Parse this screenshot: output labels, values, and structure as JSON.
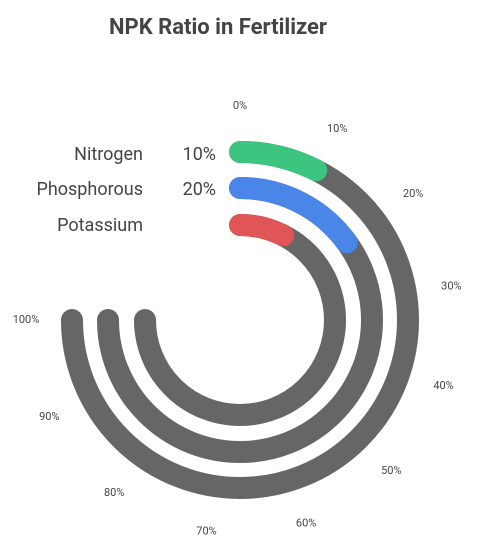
{
  "chart_data": {
    "type": "radialBar",
    "title": "NPK Ratio in Fertilizer",
    "categories": [
      "Nitrogen",
      "Phosphorous",
      "Potassium"
    ],
    "values": [
      10,
      20,
      10
    ],
    "value_labels": [
      "10%",
      "20%",
      null
    ],
    "colors": [
      "#3dc47e",
      "#4a86e8",
      "#e05555"
    ],
    "track_color": "#666666",
    "ylim": [
      0,
      100
    ],
    "yticks": [
      {
        "value": 0,
        "label": "0%"
      },
      {
        "value": 10,
        "label": "10%"
      },
      {
        "value": 20,
        "label": "20%"
      },
      {
        "value": 30,
        "label": "30%"
      },
      {
        "value": 40,
        "label": "40%"
      },
      {
        "value": 50,
        "label": "50%"
      },
      {
        "value": 60,
        "label": "60%"
      },
      {
        "value": 70,
        "label": "70%"
      },
      {
        "value": 80,
        "label": "80%"
      },
      {
        "value": 90,
        "label": "90%"
      },
      {
        "value": 100,
        "label": "100%"
      }
    ]
  }
}
